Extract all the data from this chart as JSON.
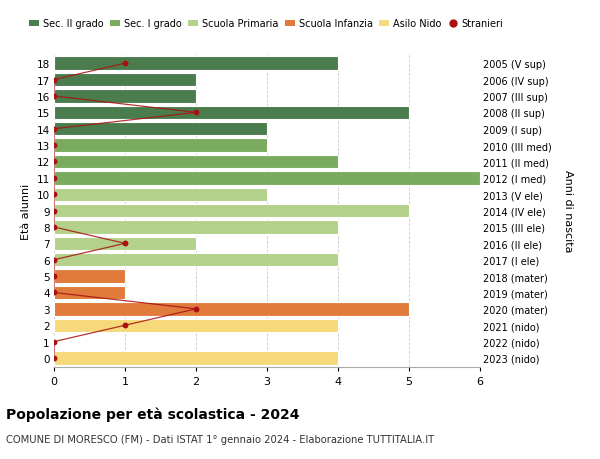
{
  "ages": [
    18,
    17,
    16,
    15,
    14,
    13,
    12,
    11,
    10,
    9,
    8,
    7,
    6,
    5,
    4,
    3,
    2,
    1,
    0
  ],
  "years": [
    "2005 (V sup)",
    "2006 (IV sup)",
    "2007 (III sup)",
    "2008 (II sup)",
    "2009 (I sup)",
    "2010 (III med)",
    "2011 (II med)",
    "2012 (I med)",
    "2013 (V ele)",
    "2014 (IV ele)",
    "2015 (III ele)",
    "2016 (II ele)",
    "2017 (I ele)",
    "2018 (mater)",
    "2019 (mater)",
    "2020 (mater)",
    "2021 (nido)",
    "2022 (nido)",
    "2023 (nido)"
  ],
  "bar_values": [
    4,
    2,
    2,
    5,
    3,
    3,
    4,
    6,
    3,
    5,
    4,
    2,
    4,
    1,
    1,
    5,
    4,
    0,
    4
  ],
  "bar_colors": [
    "#4a7c4e",
    "#4a7c4e",
    "#4a7c4e",
    "#4a7c4e",
    "#4a7c4e",
    "#7aab5e",
    "#7aab5e",
    "#7aab5e",
    "#b3d18a",
    "#b3d18a",
    "#b3d18a",
    "#b3d18a",
    "#b3d18a",
    "#e07b3c",
    "#e07b3c",
    "#e07b3c",
    "#f5d97a",
    "#f5d97a",
    "#f5d97a"
  ],
  "stranieri_x": [
    1,
    0,
    0,
    2,
    0,
    0,
    0,
    0,
    0,
    0,
    0,
    1,
    0,
    0,
    0,
    2,
    1,
    0,
    0
  ],
  "title": "Popolazione per età scolastica - 2024",
  "subtitle": "COMUNE DI MORESCO (FM) - Dati ISTAT 1° gennaio 2024 - Elaborazione TUTTITALIA.IT",
  "ylabel_left": "Età alunni",
  "ylabel_right": "Anni di nascita",
  "legend_labels": [
    "Sec. II grado",
    "Sec. I grado",
    "Scuola Primaria",
    "Scuola Infanzia",
    "Asilo Nido",
    "Stranieri"
  ],
  "legend_colors": [
    "#4a7c4e",
    "#7aab5e",
    "#b3d18a",
    "#e07b3c",
    "#f5d97a",
    "#aa1111"
  ],
  "xlim": [
    0,
    6
  ],
  "ylim_min": -0.55,
  "ylim_max": 18.55,
  "background_color": "#ffffff",
  "grid_color": "#cccccc",
  "bar_height": 0.82
}
